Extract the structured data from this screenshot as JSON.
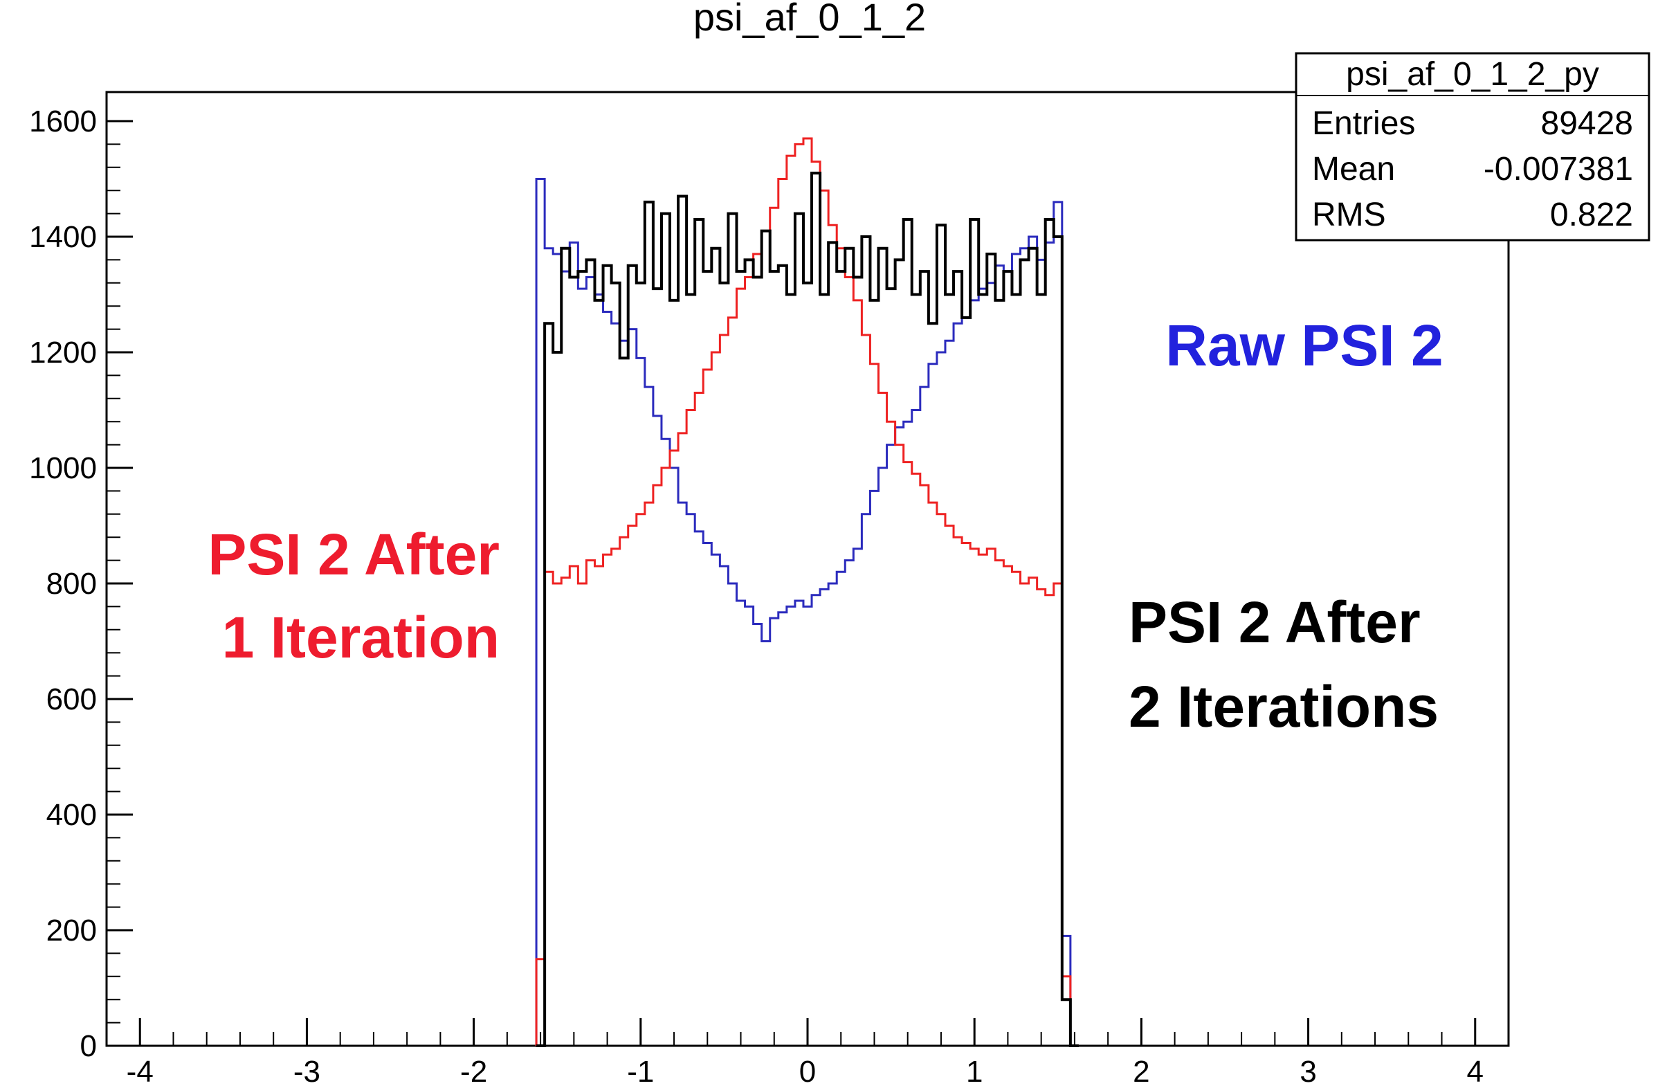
{
  "chart_data": {
    "type": "line",
    "title": "psi_af_0_1_2",
    "xlabel": "",
    "ylabel": "",
    "xlim": [
      -4.2,
      4.2
    ],
    "ylim": [
      0,
      1600
    ],
    "x_ticks": [
      -4,
      -3,
      -2,
      -1,
      0,
      1,
      2,
      3,
      4
    ],
    "y_ticks": [
      0,
      200,
      400,
      600,
      800,
      1000,
      1200,
      1400,
      1600
    ],
    "grid": false,
    "stats_box": {
      "name": "psi_af_0_1_2_py",
      "rows": [
        {
          "label": "Entries",
          "value": "89428"
        },
        {
          "label": "Mean",
          "value": "-0.007381"
        },
        {
          "label": "RMS",
          "value": "0.822"
        }
      ]
    },
    "annotations": [
      {
        "text": "Raw PSI 2",
        "color": "#2222dd"
      },
      {
        "text": "PSI 2 After",
        "text2": "1 Iteration",
        "color": "#ee1c2e"
      },
      {
        "text": "PSI 2 After",
        "text2": "2 Iterations",
        "color": "#000000"
      }
    ],
    "series": [
      {
        "name": "Raw PSI 2",
        "color": "#2b2bbd",
        "x": [
          -1.6,
          -1.55,
          -1.5,
          -1.45,
          -1.4,
          -1.35,
          -1.3,
          -1.25,
          -1.2,
          -1.15,
          -1.1,
          -1.05,
          -1.0,
          -0.95,
          -0.9,
          -0.85,
          -0.8,
          -0.75,
          -0.7,
          -0.65,
          -0.6,
          -0.55,
          -0.5,
          -0.45,
          -0.4,
          -0.35,
          -0.3,
          -0.25,
          -0.2,
          -0.15,
          -0.1,
          -0.05,
          0.0,
          0.05,
          0.1,
          0.15,
          0.2,
          0.25,
          0.3,
          0.35,
          0.4,
          0.45,
          0.5,
          0.55,
          0.6,
          0.65,
          0.7,
          0.75,
          0.8,
          0.85,
          0.9,
          0.95,
          1.0,
          1.05,
          1.1,
          1.15,
          1.2,
          1.25,
          1.3,
          1.35,
          1.4,
          1.45,
          1.5,
          1.55,
          1.6
        ],
        "y": [
          1500,
          1380,
          1370,
          1340,
          1390,
          1310,
          1330,
          1300,
          1270,
          1250,
          1220,
          1240,
          1190,
          1140,
          1090,
          1050,
          1000,
          940,
          920,
          890,
          870,
          850,
          830,
          800,
          770,
          760,
          730,
          700,
          740,
          750,
          760,
          770,
          760,
          780,
          790,
          800,
          820,
          840,
          860,
          920,
          960,
          1000,
          1040,
          1070,
          1080,
          1100,
          1140,
          1180,
          1200,
          1220,
          1250,
          1260,
          1290,
          1310,
          1320,
          1350,
          1340,
          1370,
          1380,
          1400,
          1360,
          1390,
          1460,
          190,
          0
        ]
      },
      {
        "name": "PSI 2 After 1 Iteration",
        "color": "#ee2222",
        "x": [
          -1.6,
          -1.55,
          -1.5,
          -1.45,
          -1.4,
          -1.35,
          -1.3,
          -1.25,
          -1.2,
          -1.15,
          -1.1,
          -1.05,
          -1.0,
          -0.95,
          -0.9,
          -0.85,
          -0.8,
          -0.75,
          -0.7,
          -0.65,
          -0.6,
          -0.55,
          -0.5,
          -0.45,
          -0.4,
          -0.35,
          -0.3,
          -0.25,
          -0.2,
          -0.15,
          -0.1,
          -0.05,
          0.0,
          0.05,
          0.1,
          0.15,
          0.2,
          0.25,
          0.3,
          0.35,
          0.4,
          0.45,
          0.5,
          0.55,
          0.6,
          0.65,
          0.7,
          0.75,
          0.8,
          0.85,
          0.9,
          0.95,
          1.0,
          1.05,
          1.1,
          1.15,
          1.2,
          1.25,
          1.3,
          1.35,
          1.4,
          1.45,
          1.5,
          1.55,
          1.6
        ],
        "y": [
          150,
          820,
          800,
          810,
          830,
          800,
          840,
          830,
          850,
          860,
          880,
          900,
          920,
          940,
          970,
          1000,
          1030,
          1060,
          1100,
          1130,
          1170,
          1200,
          1230,
          1260,
          1310,
          1330,
          1370,
          1410,
          1450,
          1500,
          1540,
          1560,
          1570,
          1530,
          1480,
          1420,
          1380,
          1330,
          1290,
          1230,
          1180,
          1130,
          1080,
          1040,
          1010,
          990,
          970,
          940,
          920,
          900,
          880,
          870,
          860,
          850,
          860,
          840,
          830,
          820,
          800,
          810,
          790,
          780,
          800,
          120,
          0
        ]
      },
      {
        "name": "PSI 2 After 2 Iterations",
        "color": "#000000",
        "x": [
          -1.6,
          -1.55,
          -1.5,
          -1.45,
          -1.4,
          -1.35,
          -1.3,
          -1.25,
          -1.2,
          -1.15,
          -1.1,
          -1.05,
          -1.0,
          -0.95,
          -0.9,
          -0.85,
          -0.8,
          -0.75,
          -0.7,
          -0.65,
          -0.6,
          -0.55,
          -0.5,
          -0.45,
          -0.4,
          -0.35,
          -0.3,
          -0.25,
          -0.2,
          -0.15,
          -0.1,
          -0.05,
          0.0,
          0.05,
          0.1,
          0.15,
          0.2,
          0.25,
          0.3,
          0.35,
          0.4,
          0.45,
          0.5,
          0.55,
          0.6,
          0.65,
          0.7,
          0.75,
          0.8,
          0.85,
          0.9,
          0.95,
          1.0,
          1.05,
          1.1,
          1.15,
          1.2,
          1.25,
          1.3,
          1.35,
          1.4,
          1.45,
          1.5,
          1.55,
          1.6
        ],
        "y": [
          0,
          1250,
          1200,
          1380,
          1330,
          1340,
          1360,
          1290,
          1350,
          1320,
          1190,
          1350,
          1320,
          1460,
          1310,
          1440,
          1290,
          1470,
          1300,
          1430,
          1340,
          1380,
          1320,
          1440,
          1340,
          1360,
          1330,
          1410,
          1340,
          1350,
          1300,
          1440,
          1320,
          1510,
          1300,
          1390,
          1340,
          1380,
          1330,
          1400,
          1290,
          1380,
          1310,
          1360,
          1430,
          1300,
          1340,
          1250,
          1420,
          1300,
          1340,
          1260,
          1430,
          1300,
          1370,
          1290,
          1340,
          1300,
          1360,
          1380,
          1300,
          1430,
          1400,
          80,
          0
        ]
      }
    ]
  }
}
